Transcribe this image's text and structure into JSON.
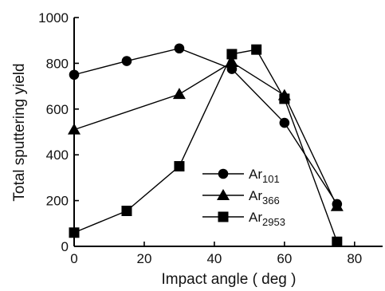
{
  "chart_data": {
    "type": "line",
    "xlabel": "Impact angle ( deg )",
    "ylabel": "Total sputtering yield",
    "xlim": [
      0,
      88
    ],
    "ylim": [
      0,
      1000
    ],
    "xticks": [
      0,
      20,
      40,
      60,
      80
    ],
    "yticks": [
      0,
      200,
      400,
      600,
      800,
      1000
    ],
    "grid": false,
    "legend_position": "lower-center",
    "series": [
      {
        "name": "Ar101",
        "name_base": "Ar",
        "name_sub": "101",
        "marker": "circle",
        "color": "#000000",
        "x": [
          0,
          15,
          30,
          45,
          60,
          75
        ],
        "y": [
          750,
          810,
          865,
          775,
          540,
          185
        ]
      },
      {
        "name": "Ar366",
        "name_base": "Ar",
        "name_sub": "366",
        "marker": "triangle",
        "color": "#000000",
        "x": [
          0,
          30,
          45,
          60,
          75
        ],
        "y": [
          510,
          665,
          805,
          660,
          175
        ]
      },
      {
        "name": "Ar2953",
        "name_base": "Ar",
        "name_sub": "2953",
        "marker": "square",
        "color": "#000000",
        "x": [
          0,
          15,
          30,
          45,
          52,
          60,
          75
        ],
        "y": [
          60,
          155,
          350,
          840,
          860,
          645,
          20
        ]
      }
    ]
  }
}
